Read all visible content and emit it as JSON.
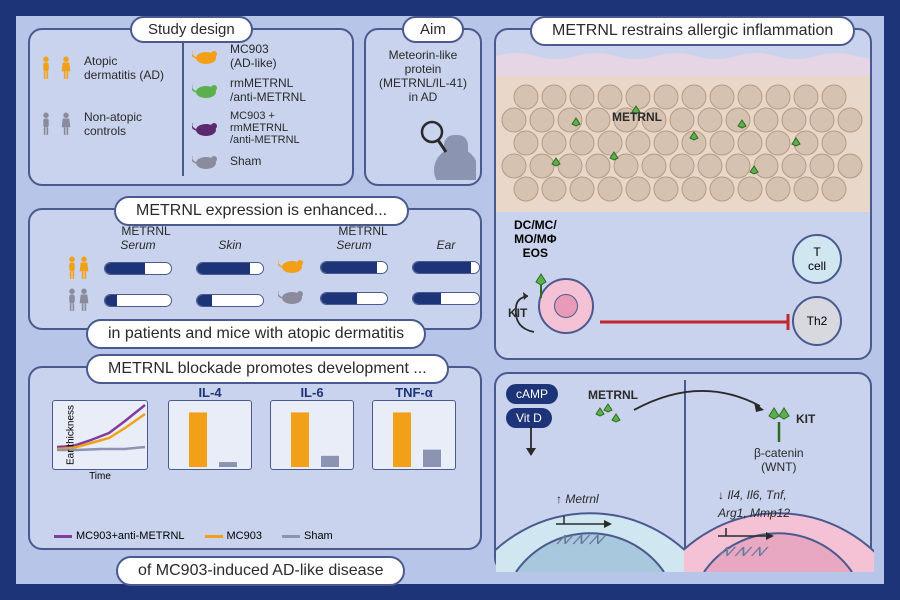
{
  "colors": {
    "frame": "#1d3478",
    "panel_bg": "#c9d3ed",
    "outer_bg": "#b7c5e8",
    "border": "#4a5a8e",
    "white": "#ffffff",
    "orange": "#f2a017",
    "green": "#5bb04d",
    "darkpurple": "#5b2a6e",
    "grey": "#8b8b9e",
    "pink": "#f5c2d5",
    "palebue": "#d0e6f0",
    "purple_line": "#7e3d9e",
    "yellow_bar": "#f2a017",
    "grey_bar": "#8b94b0"
  },
  "study_design": {
    "title": "Study design",
    "left_groups": [
      {
        "label": "Atopic\ndermatitis (AD)",
        "color": "#f2a017"
      },
      {
        "label": "Non-atopic\ncontrols",
        "color": "#8b8b9e"
      }
    ],
    "right_groups": [
      {
        "label": "MC903\n(AD-like)",
        "color": "#f2a017"
      },
      {
        "label": "rmMETRNL\n/anti-METRNL",
        "color": "#5bb04d"
      },
      {
        "label": "MC903 +\nrmMETRNL\n/anti-METRNL",
        "color": "#5b2a6e"
      },
      {
        "label": "Sham",
        "color": "#8b8b9e"
      }
    ]
  },
  "aim": {
    "title": "Aim",
    "text": "Meteorin-like\nprotein\n(METRNL/IL-41)\nin AD"
  },
  "expression": {
    "title": "METRNL expression is enhanced...",
    "subtitle": "in patients and mice with atopic dermatitis",
    "human_label": "METRNL",
    "mouse_label": "METRNL",
    "human_cols": [
      "Serum",
      "Skin"
    ],
    "mouse_cols": [
      "Serum",
      "Ear"
    ],
    "human_rows": [
      {
        "color": "#f2a017",
        "serum": 0.6,
        "skin": 0.8
      },
      {
        "color": "#8b8b9e",
        "serum": 0.18,
        "skin": 0.22
      }
    ],
    "mouse_rows": [
      {
        "color": "#f2a017",
        "serum": 0.85,
        "ear": 0.88
      },
      {
        "color": "#8b8b9e",
        "serum": 0.55,
        "ear": 0.42
      }
    ]
  },
  "blockade": {
    "title": "METRNL blockade promotes development ...",
    "subtitle": "of MC903-induced AD-like disease",
    "line_chart": {
      "yaxis": "Ear\nthickness",
      "xaxis": "Time",
      "series": [
        {
          "name": "MC903+anti-METRNL",
          "color": "#7e3d9e",
          "pts": [
            [
              0,
              0.65
            ],
            [
              0.2,
              0.63
            ],
            [
              0.4,
              0.55
            ],
            [
              0.6,
              0.45
            ],
            [
              0.8,
              0.28
            ],
            [
              1,
              0.06
            ]
          ]
        },
        {
          "name": "MC903",
          "color": "#f2a017",
          "pts": [
            [
              0,
              0.68
            ],
            [
              0.2,
              0.66
            ],
            [
              0.4,
              0.6
            ],
            [
              0.6,
              0.52
            ],
            [
              0.8,
              0.38
            ],
            [
              1,
              0.18
            ]
          ]
        },
        {
          "name": "Sham",
          "color": "#8b94b0",
          "pts": [
            [
              0,
              0.7
            ],
            [
              0.25,
              0.7
            ],
            [
              0.5,
              0.69
            ],
            [
              0.75,
              0.68
            ],
            [
              1,
              0.66
            ]
          ]
        }
      ]
    },
    "bar_charts": [
      {
        "title": "IL-4",
        "bars": [
          {
            "c": "#f2a017",
            "v": 0.88
          },
          {
            "c": "#8b94b0",
            "v": 0.08
          }
        ]
      },
      {
        "title": "IL-6",
        "bars": [
          {
            "c": "#f2a017",
            "v": 0.88
          },
          {
            "c": "#8b94b0",
            "v": 0.18
          }
        ]
      },
      {
        "title": "TNF-α",
        "bars": [
          {
            "c": "#f2a017",
            "v": 0.88
          },
          {
            "c": "#8b94b0",
            "v": 0.28
          }
        ]
      }
    ],
    "legend": [
      {
        "label": "MC903+anti-METRNL",
        "color": "#7e3d9e"
      },
      {
        "label": "MC903",
        "color": "#f2a017"
      },
      {
        "label": "Sham",
        "color": "#8b94b0"
      }
    ]
  },
  "restrain": {
    "title": "METRNL restrains allergic inflammation",
    "metrnl_label": "METRNL",
    "left_cell_label": "DC/MC/\nMO/MΦ\nEOS",
    "kit_label": "KIT",
    "tcell": "T\ncell",
    "th2": "Th2"
  },
  "pathway": {
    "camp": "cAMP",
    "vitd": "Vit D",
    "metrnl": "METRNL",
    "kit": "KIT",
    "bcat": "β-catenin\n(WNT)",
    "left_gene_up": "Metrnl",
    "right_genes_down": "Il4, Il6, Tnf,\nArg1, Mmp12"
  }
}
